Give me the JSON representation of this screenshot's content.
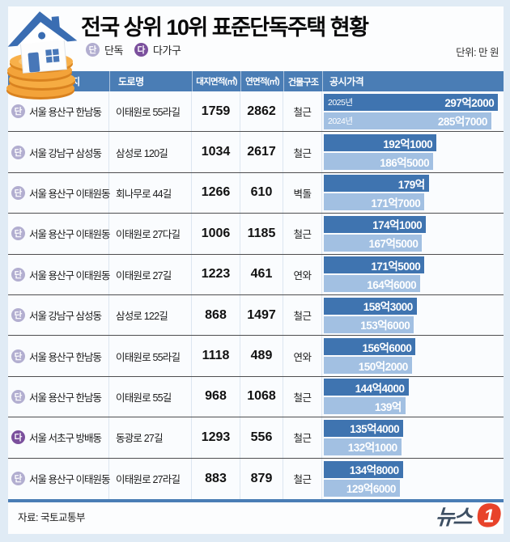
{
  "header": {
    "title": "전국 상위 10위 표준단독주택 현황",
    "legend": [
      {
        "badge": "단",
        "label": "단독"
      },
      {
        "badge": "다",
        "label": "다가구"
      }
    ],
    "unit_label": "단위: 만 원"
  },
  "table": {
    "columns": [
      "소재지",
      "도로명",
      "대지면적(㎡)",
      "연면적(㎡)",
      "건물구조",
      "공시가격"
    ],
    "bar_year_labels": [
      "2025년",
      "2024년"
    ],
    "rows": [
      {
        "badge": "단",
        "location": "서울 용산구 한남동",
        "road": "이태원로 55라길",
        "land_area": "1759",
        "floor_area": "2862",
        "structure": "철근",
        "price_2025": "297억2000",
        "price_2024": "285억7000",
        "price_2025_value": 2972000,
        "price_2024_value": 2857000
      },
      {
        "badge": "단",
        "location": "서울 강남구 삼성동",
        "road": "삼성로 120길",
        "land_area": "1034",
        "floor_area": "2617",
        "structure": "철근",
        "price_2025": "192억1000",
        "price_2024": "186억5000",
        "price_2025_value": 1921000,
        "price_2024_value": 1865000
      },
      {
        "badge": "단",
        "location": "서울 용산구 이태원동",
        "road": "회나무로 44길",
        "land_area": "1266",
        "floor_area": "610",
        "structure": "벽돌",
        "price_2025": "179억",
        "price_2024": "171억7000",
        "price_2025_value": 1790000,
        "price_2024_value": 1717000
      },
      {
        "badge": "단",
        "location": "서울 용산구 이태원동",
        "road": "이태원로 27다길",
        "land_area": "1006",
        "floor_area": "1185",
        "structure": "철근",
        "price_2025": "174억1000",
        "price_2024": "167억5000",
        "price_2025_value": 1741000,
        "price_2024_value": 1675000
      },
      {
        "badge": "단",
        "location": "서울 용산구 이태원동",
        "road": "이태원로 27길",
        "land_area": "1223",
        "floor_area": "461",
        "structure": "연와",
        "price_2025": "171억5000",
        "price_2024": "164억6000",
        "price_2025_value": 1715000,
        "price_2024_value": 1646000
      },
      {
        "badge": "단",
        "location": "서울 강남구 삼성동",
        "road": "삼성로 122길",
        "land_area": "868",
        "floor_area": "1497",
        "structure": "철근",
        "price_2025": "158억3000",
        "price_2024": "153억6000",
        "price_2025_value": 1583000,
        "price_2024_value": 1536000
      },
      {
        "badge": "단",
        "location": "서울 용산구 한남동",
        "road": "이태원로 55라길",
        "land_area": "1118",
        "floor_area": "489",
        "structure": "연와",
        "price_2025": "156억6000",
        "price_2024": "150억2000",
        "price_2025_value": 1566000,
        "price_2024_value": 1502000
      },
      {
        "badge": "단",
        "location": "서울 용산구 한남동",
        "road": "이태원로 55길",
        "land_area": "968",
        "floor_area": "1068",
        "structure": "철근",
        "price_2025": "144억4000",
        "price_2024": "139억",
        "price_2025_value": 1444000,
        "price_2024_value": 1390000
      },
      {
        "badge": "다",
        "location": "서울 서초구 방배동",
        "road": "동광로 27길",
        "land_area": "1293",
        "floor_area": "556",
        "structure": "철근",
        "price_2025": "135억4000",
        "price_2024": "132억1000",
        "price_2025_value": 1354000,
        "price_2024_value": 1321000
      },
      {
        "badge": "단",
        "location": "서울 용산구 이태원동",
        "road": "이태원로 27라길",
        "land_area": "883",
        "floor_area": "879",
        "structure": "철근",
        "price_2025": "134억8000",
        "price_2024": "129억6000",
        "price_2025_value": 1348000,
        "price_2024_value": 1296000
      }
    ]
  },
  "footer": {
    "source": "자료: 국토교통부",
    "logo_text": "뉴스",
    "logo_mark": "1"
  },
  "colors": {
    "c-header-bar": "#4a7db5",
    "c-bar-2025": "#3f74b0",
    "c-bar-2024": "#a2c0e2",
    "c-badge-dan": "#b2aed0",
    "c-badge-da": "#7b509d",
    "c-page-bg": "#e0ebf5",
    "c-panel-bg": "#fcfdfe",
    "c-logo-orange": "#e8432a",
    "c-logo-navy": "#3d4f63"
  },
  "chart_data": {
    "type": "bar",
    "orientation": "horizontal",
    "title": "전국 상위 10위 표준단독주택 현황",
    "unit": "만 원",
    "legend_position": "in-bar (first row only)",
    "grid": false,
    "xlim": [
      0,
      2972000
    ],
    "categories": [
      "서울 용산구 한남동 · 이태원로 55라길",
      "서울 강남구 삼성동 · 삼성로 120길",
      "서울 용산구 이태원동 · 회나무로 44길",
      "서울 용산구 이태원동 · 이태원로 27다길",
      "서울 용산구 이태원동 · 이태원로 27길",
      "서울 강남구 삼성동 · 삼성로 122길",
      "서울 용산구 한남동 · 이태원로 55라길",
      "서울 용산구 한남동 · 이태원로 55길",
      "서울 서초구 방배동 · 동광로 27길",
      "서울 용산구 이태원동 · 이태원로 27라길"
    ],
    "series": [
      {
        "name": "2025년",
        "values": [
          2972000,
          1921000,
          1790000,
          1741000,
          1715000,
          1583000,
          1566000,
          1444000,
          1354000,
          1348000
        ]
      },
      {
        "name": "2024년",
        "values": [
          2857000,
          1865000,
          1717000,
          1675000,
          1646000,
          1536000,
          1502000,
          1390000,
          1321000,
          1296000
        ]
      }
    ]
  }
}
